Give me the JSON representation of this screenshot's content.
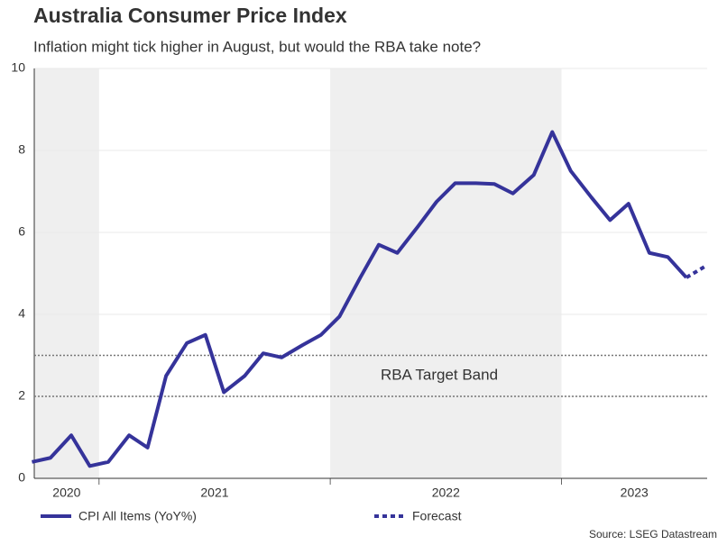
{
  "chart_data": {
    "type": "line",
    "title": "Australia Consumer Price Index",
    "subtitle": "Inflation might tick higher in August, but would the RBA take note?",
    "source": "Source: LSEG Datastream",
    "x": [
      2020.71,
      2020.79,
      2020.88,
      2020.96,
      2021.04,
      2021.13,
      2021.21,
      2021.29,
      2021.38,
      2021.46,
      2021.54,
      2021.63,
      2021.71,
      2021.79,
      2021.88,
      2021.96,
      2022.04,
      2022.13,
      2022.21,
      2022.29,
      2022.38,
      2022.46,
      2022.54,
      2022.63,
      2022.71,
      2022.79,
      2022.88,
      2022.96,
      2023.04,
      2023.13,
      2023.21,
      2023.29,
      2023.38,
      2023.46,
      2023.54,
      2023.63
    ],
    "series": [
      {
        "name": "CPI All Items (YoY%)",
        "color": "#35339a",
        "dash": false,
        "values": [
          0.4,
          0.5,
          1.05,
          0.3,
          0.4,
          1.05,
          0.75,
          2.5,
          3.3,
          3.5,
          2.1,
          2.5,
          3.05,
          2.95,
          3.25,
          3.5,
          3.95,
          4.9,
          5.7,
          5.5,
          6.15,
          6.75,
          7.2,
          7.2,
          7.18,
          6.95,
          7.4,
          8.45,
          7.5,
          6.85,
          6.3,
          6.7,
          5.5,
          5.4,
          4.9,
          null
        ]
      },
      {
        "name": "Forecast",
        "color": "#35339a",
        "dash": true,
        "values": [
          null,
          null,
          null,
          null,
          null,
          null,
          null,
          null,
          null,
          null,
          null,
          null,
          null,
          null,
          null,
          null,
          null,
          null,
          null,
          null,
          null,
          null,
          null,
          null,
          null,
          null,
          null,
          null,
          null,
          null,
          null,
          null,
          null,
          null,
          4.9,
          5.2
        ]
      }
    ],
    "xlim": [
      2020.72,
      2023.63
    ],
    "xticks": [
      2021,
      2022,
      2023
    ],
    "year_labels": [
      "2020",
      "2021",
      "2022",
      "2023"
    ],
    "alternate_shading": true,
    "ylim": [
      0,
      10
    ],
    "yticks": [
      0,
      2,
      4,
      6,
      8,
      10
    ],
    "grid": true,
    "reference_lines": [
      2,
      3
    ],
    "annotation": "RBA Target Band",
    "legend": "bottom"
  }
}
